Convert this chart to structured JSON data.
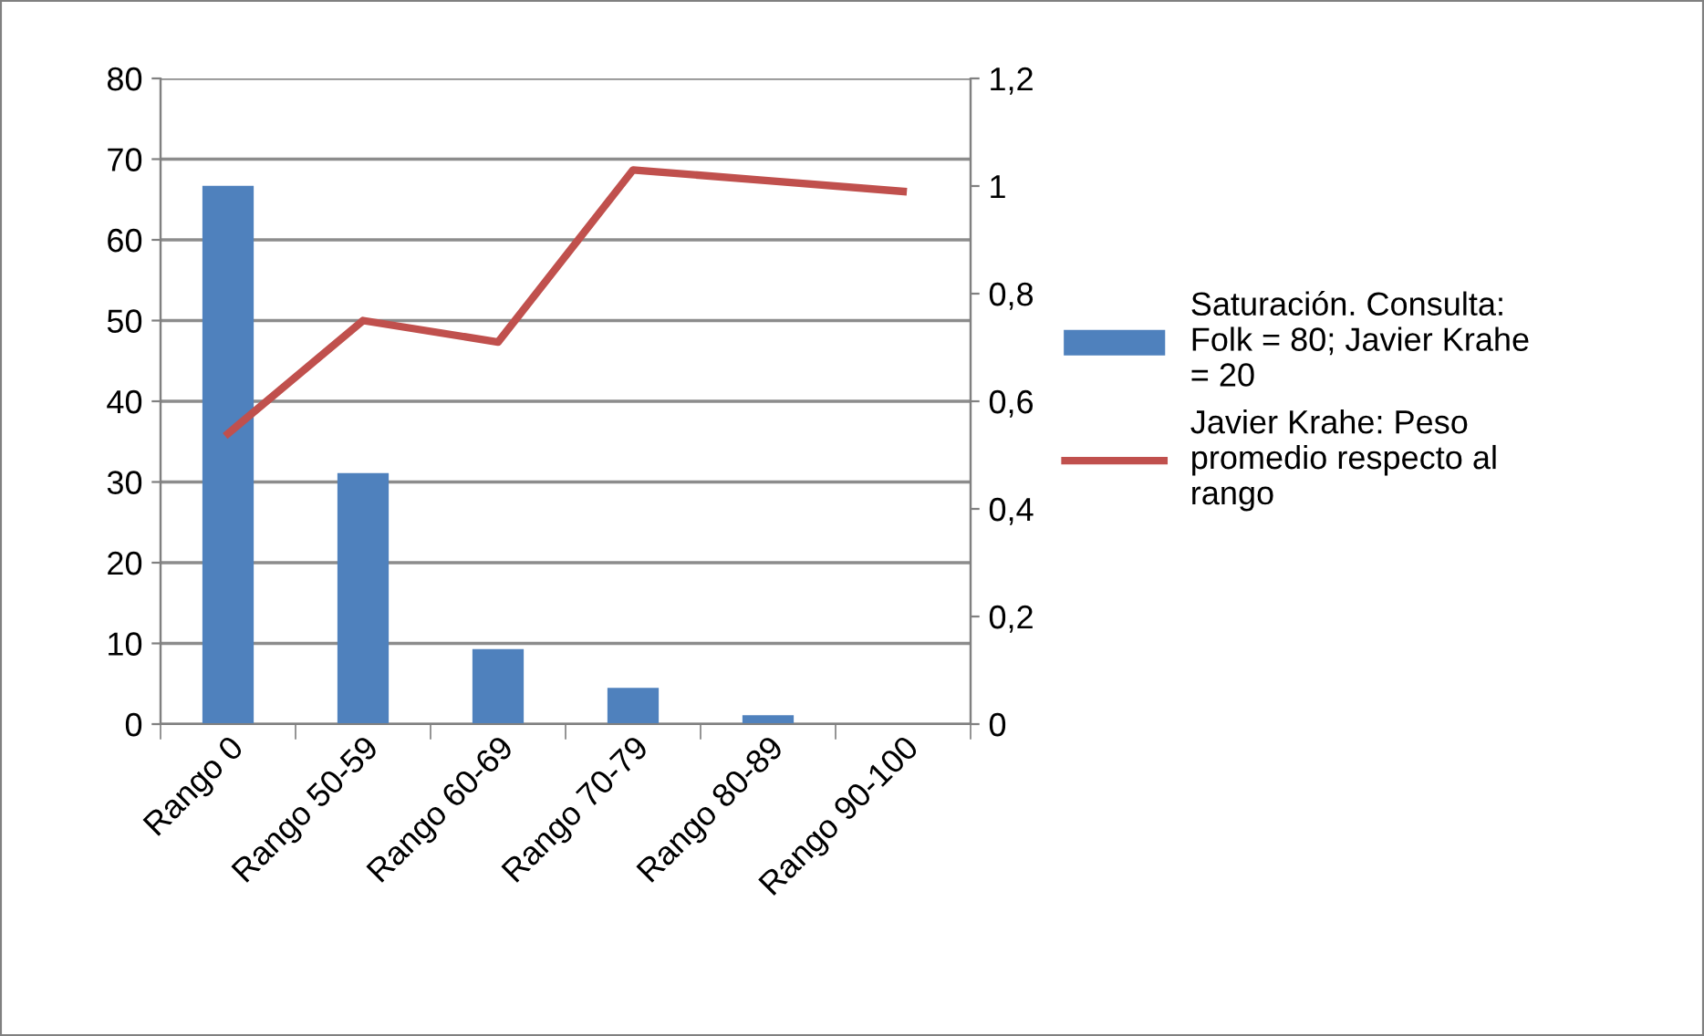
{
  "chart_data": {
    "type": "bar",
    "categories": [
      "Rango 0",
      "Rango 50-59",
      "Rango 60-69",
      "Rango 70-79",
      "Rango 80-89",
      "Rango 90-100"
    ],
    "series": [
      {
        "name": "Saturación. Consulta: Folk = 80; Javier Krahe = 20",
        "color": "#4f81bd",
        "values": [
          66.7,
          31.1,
          9.3,
          4.5,
          1.1,
          0
        ]
      },
      {
        "name": "Javier Krahe: Peso promedio respecto al rango",
        "type": "line",
        "axis": "y2",
        "color": "#c0504d",
        "values": [
          0.54,
          0.75,
          0.71,
          1.03,
          1.01,
          0.99
        ]
      }
    ],
    "ylim": [
      0,
      80
    ],
    "yticks": [
      0,
      10,
      20,
      30,
      40,
      50,
      60,
      70,
      80
    ],
    "y2lim": [
      0,
      1.2
    ],
    "y2ticks": [
      0,
      {
        "value": 0.2,
        "label": "0,2"
      },
      {
        "value": 0.4,
        "label": "0,4"
      },
      {
        "value": 0.6,
        "label": "0,6"
      },
      {
        "value": 0.8,
        "label": "0,8"
      },
      1,
      {
        "value": 1.2,
        "label": "1,2"
      }
    ],
    "grid": "y",
    "legend": "right",
    "marker": "none"
  }
}
